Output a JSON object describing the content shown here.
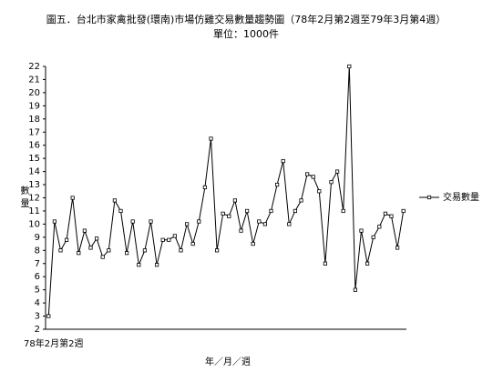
{
  "chart_data": {
    "type": "line",
    "title": "圖五．台北市家禽批發(環南)市場仿雞交易數量趨勢圖（78年2月第2週至79年3月第4週）",
    "subtitle": "單位：1000件",
    "y_label": "數量",
    "x_label": "年／月／週",
    "categories": [
      "78年2月第2週",
      null,
      null,
      null,
      null,
      null,
      null,
      null,
      null,
      null,
      null,
      null,
      null,
      null,
      null,
      null,
      null,
      null,
      null,
      null,
      null,
      null,
      null,
      null,
      null,
      null,
      null,
      null,
      null,
      null,
      null,
      null,
      null,
      null,
      null,
      null,
      null,
      null,
      null,
      null,
      null,
      null,
      null,
      null,
      null,
      null,
      null,
      null,
      null,
      null,
      null,
      null,
      null,
      null,
      null,
      null,
      null,
      null,
      null,
      null
    ],
    "series": [
      {
        "name": "交易數量",
        "color": "#000000",
        "values": [
          3,
          10.2,
          8,
          8.8,
          12,
          7.8,
          9.5,
          8.2,
          8.9,
          7.5,
          8,
          11.8,
          11,
          7.8,
          10.2,
          6.9,
          8,
          10.2,
          6.9,
          8.8,
          8.8,
          9.1,
          8,
          10,
          8.5,
          10.2,
          12.8,
          16.5,
          8,
          10.8,
          10.6,
          11.8,
          9.5,
          11,
          8.5,
          10.2,
          10,
          11,
          13,
          14.8,
          10,
          11,
          11.8,
          13.8,
          13.6,
          12.5,
          7,
          13.2,
          14,
          11,
          22,
          5,
          9.5,
          7,
          9,
          9.8,
          10.8,
          10.6,
          8.2,
          11
        ]
      }
    ],
    "ylim": [
      2,
      22
    ],
    "yticks": [
      2,
      3,
      4,
      5,
      6,
      7,
      8,
      9,
      10,
      11,
      12,
      13,
      14,
      15,
      16,
      17,
      18,
      19,
      20,
      21,
      22
    ],
    "legend": "right"
  }
}
